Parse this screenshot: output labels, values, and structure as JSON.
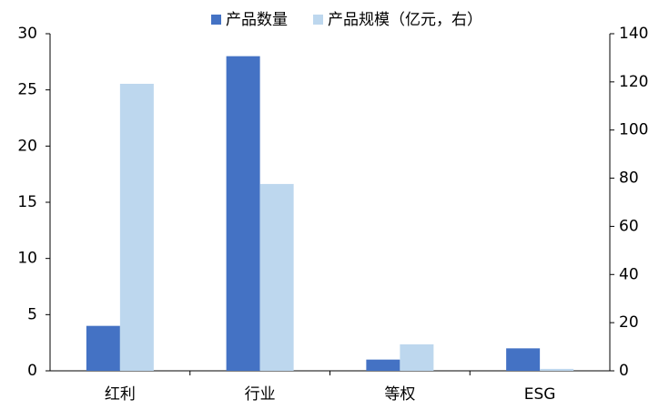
{
  "chart_data": {
    "type": "bar",
    "categories": [
      "红利",
      "行业",
      "等权",
      "ESG"
    ],
    "series": [
      {
        "name": "产品数量",
        "color": "#4472c4",
        "values": [
          4,
          28,
          1,
          2
        ]
      },
      {
        "name": "产品规模（亿元，右）",
        "color": "#bdd7ee",
        "values": [
          119.2,
          77.6,
          11,
          0.8
        ],
        "axis": "y2"
      }
    ],
    "ylim": [
      0,
      30
    ],
    "yticks": [
      0,
      5,
      10,
      15,
      20,
      25,
      30
    ],
    "y2lim": [
      0,
      140
    ],
    "y2ticks": [
      0,
      20,
      40,
      60,
      80,
      100,
      120,
      140
    ],
    "legend": "top"
  }
}
